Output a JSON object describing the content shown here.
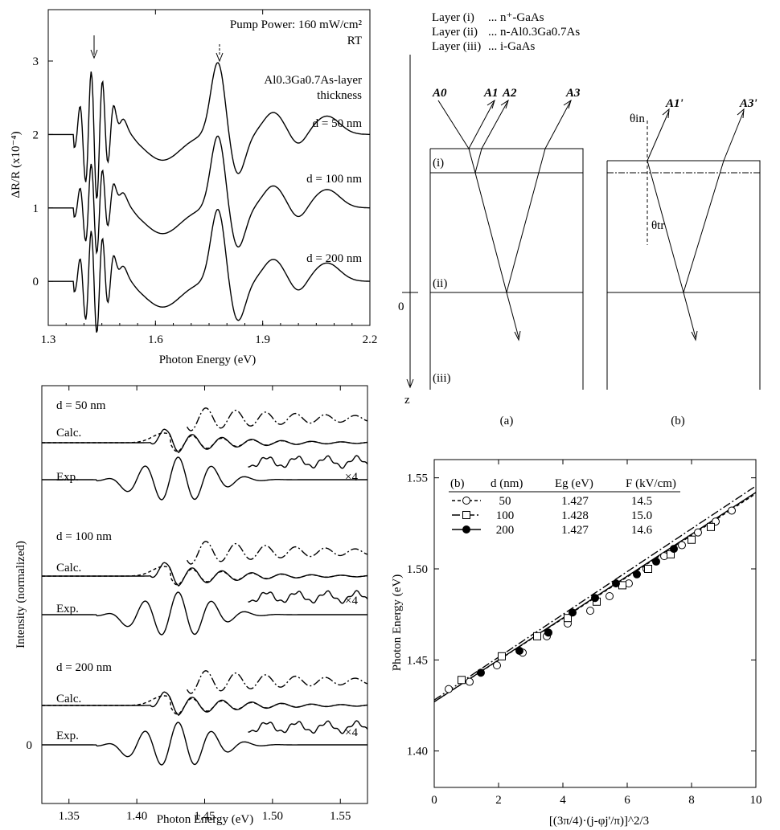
{
  "chart_data": [
    {
      "panel": "top-left",
      "type": "line",
      "xlabel": "Photon Energy (eV)",
      "ylabel": "ΔR/R (x10⁻⁴)",
      "xlim": [
        1.3,
        2.2
      ],
      "ylim": [
        -0.6,
        3.7
      ],
      "xticks": [
        "1.3",
        "1.6",
        "1.9",
        "2.2"
      ],
      "yticks": [
        "0",
        "1",
        "2",
        "3"
      ],
      "annotation_pump": "Pump Power: 160 mW/cm²",
      "annotation_rt": "RT",
      "annotation_layer": "Al0.3Ga0.7As-layer",
      "annotation_thickness": "thickness",
      "series": [
        {
          "name": "d = 50 nm",
          "offset": 2
        },
        {
          "name": "d = 100 nm",
          "offset": 1
        },
        {
          "name": "d = 200 nm",
          "offset": 0
        }
      ]
    },
    {
      "panel": "bottom-left",
      "type": "line",
      "xlabel": "Photon Energy (eV)",
      "ylabel": "Intensity (normalized)",
      "xlim": [
        1.33,
        1.57
      ],
      "xticks": [
        "1.35",
        "1.40",
        "1.45",
        "1.50",
        "1.55"
      ],
      "yticks": [
        "0"
      ],
      "groups": [
        {
          "name": "d = 50 nm",
          "calc": "Calc.",
          "exp": "Exp.",
          "scale": "×4"
        },
        {
          "name": "d = 100 nm",
          "calc": "Calc.",
          "exp": "Exp.",
          "scale": "×4"
        },
        {
          "name": "d = 200 nm",
          "calc": "Calc.",
          "exp": "Exp.",
          "scale": "×4"
        }
      ]
    },
    {
      "panel": "bottom-right",
      "type": "scatter",
      "xlabel": "[(3π/4)·(j-φj'/π)]^2/3",
      "ylabel": "Photon Energy (eV)",
      "xlim": [
        0,
        10
      ],
      "ylim": [
        1.38,
        1.56
      ],
      "xticks": [
        "0",
        "2",
        "4",
        "6",
        "8",
        "10"
      ],
      "yticks": [
        "1.40",
        "1.45",
        "1.50",
        "1.55"
      ],
      "table_label": "(b)",
      "table_headers": [
        "d (nm)",
        "Eg (eV)",
        "F (kV/cm)"
      ],
      "series": [
        {
          "name": "50",
          "Eg": "1.427",
          "F": "14.5",
          "marker": "open-circle",
          "x": [
            0.45,
            1.1,
            1.95,
            2.75,
            3.5,
            4.15,
            4.85,
            5.45,
            6.05,
            6.6,
            7.15,
            7.7,
            8.2,
            8.75,
            9.25
          ],
          "y": [
            1.434,
            1.438,
            1.447,
            1.454,
            1.463,
            1.47,
            1.477,
            1.485,
            1.492,
            1.5,
            1.507,
            1.513,
            1.52,
            1.526,
            1.532
          ]
        },
        {
          "name": "100",
          "Eg": "1.428",
          "F": "15.0",
          "marker": "open-square",
          "x": [
            0.85,
            2.1,
            3.2,
            4.15,
            5.05,
            5.85,
            6.65,
            7.35,
            8.0,
            8.6
          ],
          "y": [
            1.439,
            1.452,
            1.463,
            1.473,
            1.482,
            1.491,
            1.5,
            1.508,
            1.516,
            1.523
          ]
        },
        {
          "name": "200",
          "Eg": "1.427",
          "F": "14.6",
          "marker": "filled-circle",
          "x": [
            1.45,
            2.65,
            3.55,
            4.3,
            5.0,
            5.65,
            6.3,
            6.9,
            7.45
          ],
          "y": [
            1.443,
            1.455,
            1.465,
            1.476,
            1.484,
            1.492,
            1.497,
            1.504,
            1.511
          ]
        }
      ],
      "fits": [
        {
          "name": "50",
          "intercept": 1.427,
          "slope": 0.01143
        },
        {
          "name": "100",
          "intercept": 1.428,
          "slope": 0.01175
        },
        {
          "name": "200",
          "intercept": 1.427,
          "slope": 0.0115
        }
      ]
    }
  ],
  "diagram": {
    "legend": [
      {
        "label": "Layer (i)",
        "desc": "... n⁺-GaAs"
      },
      {
        "label": "Layer (ii)",
        "desc": "... n-Al0.3Ga0.7As"
      },
      {
        "label": "Layer (iii)",
        "desc": "... i-GaAs"
      }
    ],
    "a_labels": [
      "A0",
      "A1",
      "A2",
      "A3"
    ],
    "b_labels": [
      "A1'",
      "A3'"
    ],
    "theta_in": "θin",
    "theta_tr": "θtr",
    "layer_i": "(i)",
    "layer_ii": "(ii)",
    "layer_iii": "(iii)",
    "zero": "0",
    "z": "z",
    "caption_a": "(a)",
    "caption_b": "(b)"
  }
}
